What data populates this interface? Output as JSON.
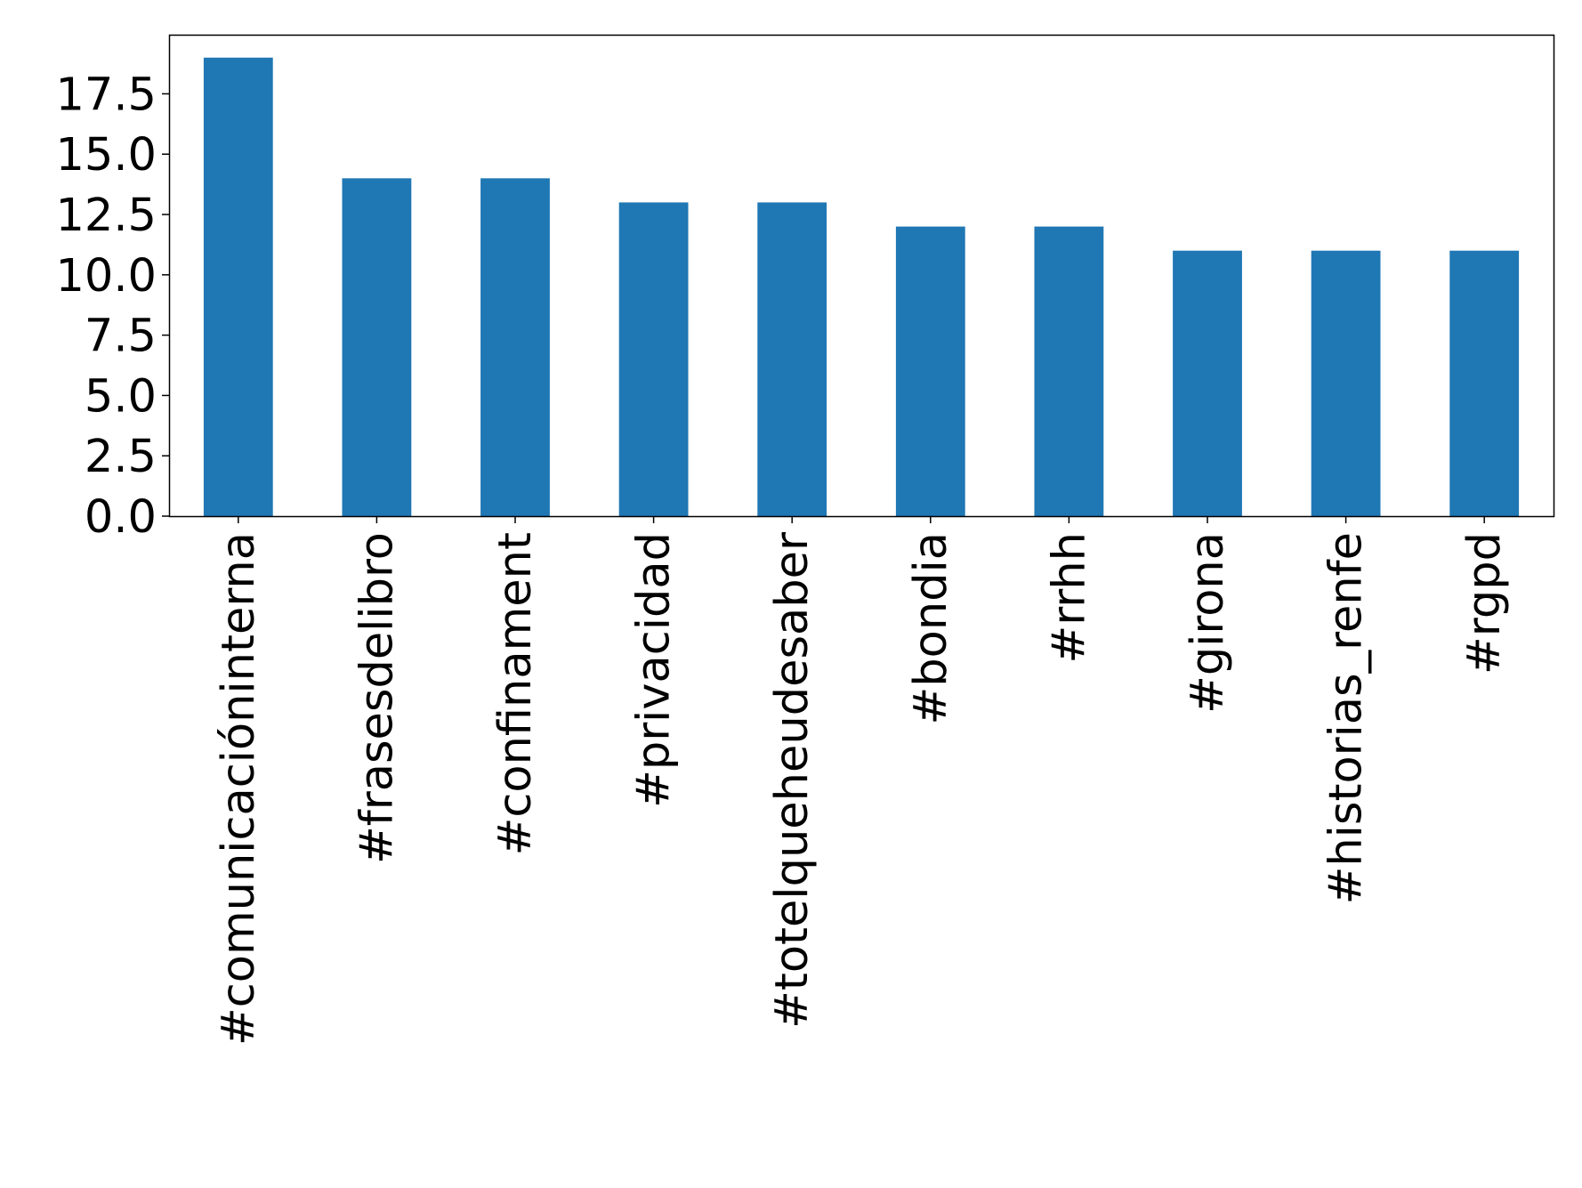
{
  "chart_data": {
    "type": "bar",
    "categories": [
      "#comunicacióninterna",
      "#frasesdelibro",
      "#confinament",
      "#privacidad",
      "#totelqueheudesaber",
      "#bondia",
      "#rrhh",
      "#girona",
      "#historias_renfe",
      "#rgpd"
    ],
    "values": [
      19,
      14,
      14,
      13,
      13,
      12,
      12,
      11,
      11,
      11
    ],
    "title": "",
    "xlabel": "",
    "ylabel": "",
    "ylim": [
      0,
      19.95
    ],
    "yticks": [
      "0.0",
      "2.5",
      "5.0",
      "7.5",
      "10.0",
      "12.5",
      "15.0",
      "17.5"
    ],
    "grid": false,
    "legend": "none",
    "bar_color": "#1f77b4"
  }
}
